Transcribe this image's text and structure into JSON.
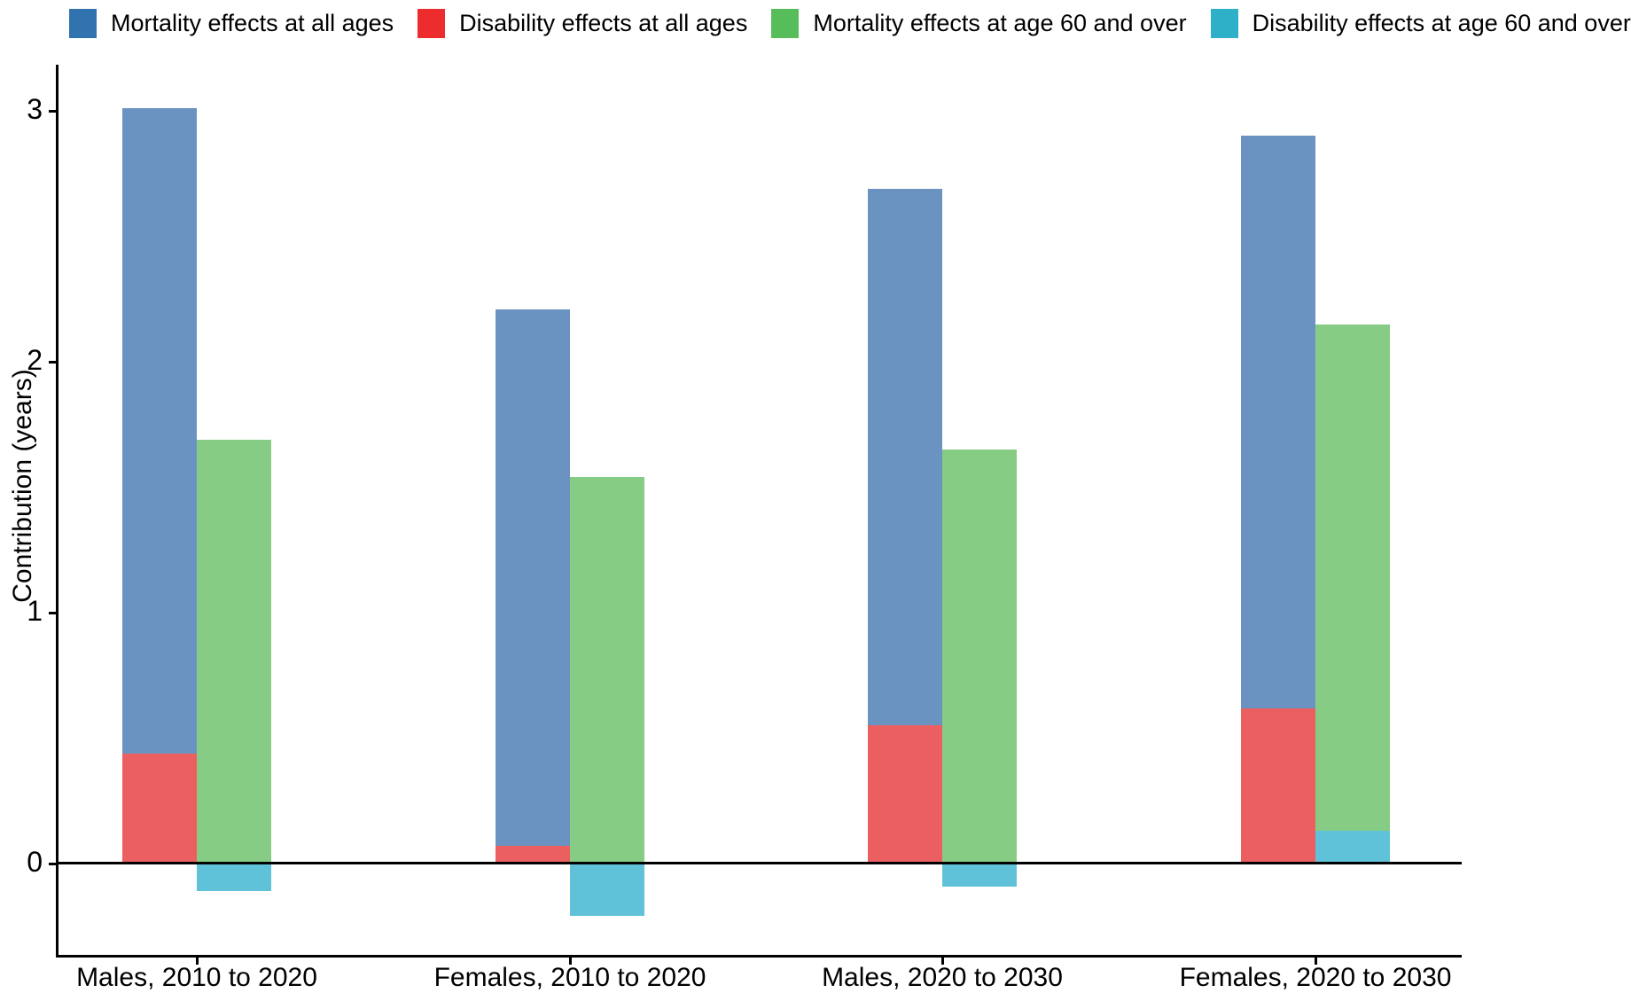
{
  "chart_data": {
    "type": "bar",
    "title": "",
    "xlabel": "",
    "ylabel": "Contribution (years)",
    "categories": [
      "Males, 2010 to 2020",
      "Females, 2010 to 2020",
      "Males, 2020 to 2030",
      "Females, 2020 to 2030"
    ],
    "yticks": [
      0,
      1,
      2,
      3
    ],
    "ylim": [
      -0.37,
      3.18
    ],
    "grid": false,
    "legend_position": "top",
    "bar_layout": "Two columns per category; disability bars are overlaid on the base of the matching mortality bars; negative values extend below the zero line",
    "series": [
      {
        "name": "Mortality effects at all ages",
        "column": "left",
        "legend_color": "#3173AE",
        "bar_color": "#6B93C2",
        "values": [
          3.01,
          2.21,
          2.69,
          2.9
        ]
      },
      {
        "name": "Disability effects at all ages",
        "column": "left",
        "legend_color": "#ED2D2D",
        "bar_color": "#EC5F60",
        "values": [
          0.44,
          0.07,
          0.55,
          0.62
        ]
      },
      {
        "name": "Mortality effects at age 60 and over",
        "column": "right",
        "legend_color": "#57BD5B",
        "bar_color": "#87CC85",
        "values": [
          1.69,
          1.54,
          1.65,
          2.15
        ]
      },
      {
        "name": "Disability effects at age 60 and over",
        "column": "right",
        "legend_color": "#2FB0C9",
        "bar_color": "#5FC2D9",
        "values": [
          -0.11,
          -0.21,
          -0.09,
          0.13
        ]
      }
    ]
  }
}
